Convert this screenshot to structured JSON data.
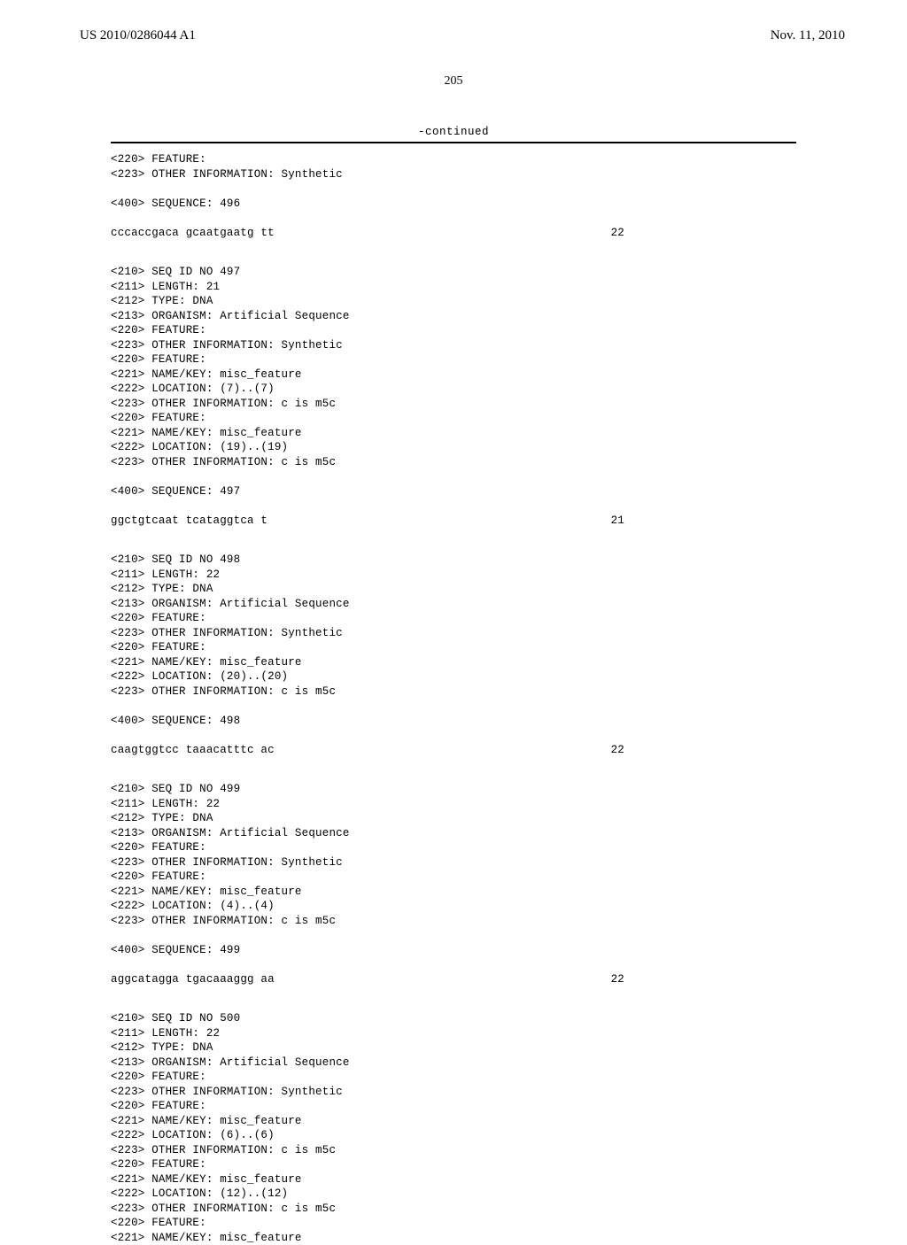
{
  "header": {
    "left": "US 2010/0286044 A1",
    "right": "Nov. 11, 2010"
  },
  "page_number": "205",
  "continued": "-continued",
  "blocks": [
    {
      "lines": [
        "<220> FEATURE:",
        "<223> OTHER INFORMATION: Synthetic",
        "",
        "<400> SEQUENCE: 496"
      ],
      "sequence": {
        "seq": "cccaccgaca gcaatgaatg tt",
        "num": "22"
      }
    },
    {
      "lines": [
        "<210> SEQ ID NO 497",
        "<211> LENGTH: 21",
        "<212> TYPE: DNA",
        "<213> ORGANISM: Artificial Sequence",
        "<220> FEATURE:",
        "<223> OTHER INFORMATION: Synthetic",
        "<220> FEATURE:",
        "<221> NAME/KEY: misc_feature",
        "<222> LOCATION: (7)..(7)",
        "<223> OTHER INFORMATION: c is m5c",
        "<220> FEATURE:",
        "<221> NAME/KEY: misc_feature",
        "<222> LOCATION: (19)..(19)",
        "<223> OTHER INFORMATION: c is m5c",
        "",
        "<400> SEQUENCE: 497"
      ],
      "sequence": {
        "seq": "ggctgtcaat tcataggtca t",
        "num": "21"
      }
    },
    {
      "lines": [
        "<210> SEQ ID NO 498",
        "<211> LENGTH: 22",
        "<212> TYPE: DNA",
        "<213> ORGANISM: Artificial Sequence",
        "<220> FEATURE:",
        "<223> OTHER INFORMATION: Synthetic",
        "<220> FEATURE:",
        "<221> NAME/KEY: misc_feature",
        "<222> LOCATION: (20)..(20)",
        "<223> OTHER INFORMATION: c is m5c",
        "",
        "<400> SEQUENCE: 498"
      ],
      "sequence": {
        "seq": "caagtggtcc taaacatttc ac",
        "num": "22"
      }
    },
    {
      "lines": [
        "<210> SEQ ID NO 499",
        "<211> LENGTH: 22",
        "<212> TYPE: DNA",
        "<213> ORGANISM: Artificial Sequence",
        "<220> FEATURE:",
        "<223> OTHER INFORMATION: Synthetic",
        "<220> FEATURE:",
        "<221> NAME/KEY: misc_feature",
        "<222> LOCATION: (4)..(4)",
        "<223> OTHER INFORMATION: c is m5c",
        "",
        "<400> SEQUENCE: 499"
      ],
      "sequence": {
        "seq": "aggcatagga tgacaaaggg aa",
        "num": "22"
      }
    },
    {
      "lines": [
        "<210> SEQ ID NO 500",
        "<211> LENGTH: 22",
        "<212> TYPE: DNA",
        "<213> ORGANISM: Artificial Sequence",
        "<220> FEATURE:",
        "<223> OTHER INFORMATION: Synthetic",
        "<220> FEATURE:",
        "<221> NAME/KEY: misc_feature",
        "<222> LOCATION: (6)..(6)",
        "<223> OTHER INFORMATION: c is m5c",
        "<220> FEATURE:",
        "<221> NAME/KEY: misc_feature",
        "<222> LOCATION: (12)..(12)",
        "<223> OTHER INFORMATION: c is m5c",
        "<220> FEATURE:",
        "<221> NAME/KEY: misc_feature"
      ],
      "sequence": null
    }
  ]
}
